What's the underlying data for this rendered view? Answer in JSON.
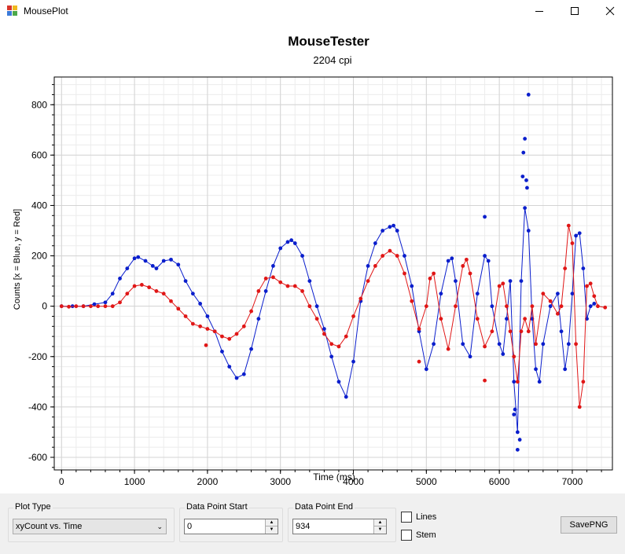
{
  "window": {
    "title": "MousePlot",
    "icon": "chart-app-icon",
    "controls": [
      "minimize-icon",
      "maximize-icon",
      "close-icon"
    ]
  },
  "chart": {
    "title": "MouseTester",
    "subtitle": "2204 cpi",
    "xlabel": "Time (ms)",
    "ylabel": "Counts [x = Blue, y = Red]"
  },
  "chart_data": {
    "type": "line",
    "title": "MouseTester",
    "subtitle": "2204 cpi",
    "xlabel": "Time (ms)",
    "ylabel": "Counts [x = Blue, y = Red]",
    "xlim": [
      -100,
      7550
    ],
    "ylim": [
      -650,
      910
    ],
    "xticks": [
      0,
      1000,
      2000,
      3000,
      4000,
      5000,
      6000,
      7000
    ],
    "yticks": [
      -600,
      -400,
      -200,
      0,
      200,
      400,
      600,
      800
    ],
    "grid": true,
    "legend": "none",
    "series": [
      {
        "color": "#0a1ecc",
        "points": [
          [
            0,
            0
          ],
          [
            150,
            0
          ],
          [
            300,
            0
          ],
          [
            450,
            8
          ],
          [
            600,
            15
          ],
          [
            700,
            50
          ],
          [
            800,
            110
          ],
          [
            900,
            150
          ],
          [
            1000,
            190
          ],
          [
            1050,
            195
          ],
          [
            1150,
            180
          ],
          [
            1250,
            160
          ],
          [
            1300,
            150
          ],
          [
            1400,
            180
          ],
          [
            1500,
            185
          ],
          [
            1600,
            165
          ],
          [
            1700,
            100
          ],
          [
            1800,
            50
          ],
          [
            1900,
            10
          ],
          [
            2000,
            -40
          ],
          [
            2100,
            -100
          ],
          [
            2200,
            -180
          ],
          [
            2300,
            -240
          ],
          [
            2400,
            -285
          ],
          [
            2500,
            -270
          ],
          [
            2600,
            -170
          ],
          [
            2700,
            -50
          ],
          [
            2800,
            60
          ],
          [
            2900,
            160
          ],
          [
            3000,
            230
          ],
          [
            3100,
            255
          ],
          [
            3150,
            262
          ],
          [
            3200,
            250
          ],
          [
            3300,
            200
          ],
          [
            3400,
            100
          ],
          [
            3500,
            0
          ],
          [
            3600,
            -90
          ],
          [
            3700,
            -200
          ],
          [
            3800,
            -300
          ],
          [
            3900,
            -360
          ],
          [
            4000,
            -220
          ],
          [
            4100,
            20
          ],
          [
            4200,
            160
          ],
          [
            4300,
            250
          ],
          [
            4400,
            300
          ],
          [
            4500,
            315
          ],
          [
            4550,
            320
          ],
          [
            4600,
            300
          ],
          [
            4700,
            200
          ],
          [
            4800,
            80
          ],
          [
            4900,
            -100
          ],
          [
            5000,
            -250
          ],
          [
            5100,
            -150
          ],
          [
            5200,
            50
          ],
          [
            5300,
            180
          ],
          [
            5350,
            190
          ],
          [
            5400,
            100
          ],
          [
            5500,
            -150
          ],
          [
            5600,
            -200
          ],
          [
            5700,
            50
          ],
          [
            5800,
            200
          ],
          [
            5850,
            180
          ],
          [
            5900,
            0
          ],
          [
            6000,
            -150
          ],
          [
            6050,
            -190
          ],
          [
            6100,
            -50
          ],
          [
            6150,
            100
          ],
          [
            6200,
            -300
          ],
          [
            6250,
            -500
          ],
          [
            6300,
            100
          ],
          [
            6350,
            390
          ],
          [
            6400,
            300
          ],
          [
            6450,
            -50
          ],
          [
            6500,
            -250
          ],
          [
            6550,
            -300
          ],
          [
            6600,
            -150
          ],
          [
            6700,
            0
          ],
          [
            6800,
            50
          ],
          [
            6850,
            -100
          ],
          [
            6900,
            -250
          ],
          [
            6950,
            -150
          ],
          [
            7000,
            50
          ],
          [
            7050,
            280
          ],
          [
            7100,
            290
          ],
          [
            7150,
            150
          ],
          [
            7200,
            -50
          ],
          [
            7250,
            0
          ],
          [
            7300,
            10
          ]
        ],
        "outliers": [
          [
            6400,
            840
          ],
          [
            6350,
            665
          ],
          [
            6330,
            610
          ],
          [
            6320,
            515
          ],
          [
            6370,
            500
          ],
          [
            6380,
            470
          ],
          [
            6250,
            -570
          ],
          [
            6280,
            -530
          ],
          [
            5800,
            355
          ],
          [
            6200,
            -430
          ],
          [
            6215,
            -410
          ]
        ]
      },
      {
        "color": "#e01616",
        "points": [
          [
            0,
            0
          ],
          [
            100,
            -2
          ],
          [
            200,
            0
          ],
          [
            300,
            0
          ],
          [
            400,
            0
          ],
          [
            500,
            0
          ],
          [
            600,
            0
          ],
          [
            700,
            0
          ],
          [
            800,
            15
          ],
          [
            900,
            50
          ],
          [
            1000,
            80
          ],
          [
            1100,
            85
          ],
          [
            1200,
            75
          ],
          [
            1300,
            60
          ],
          [
            1400,
            50
          ],
          [
            1500,
            20
          ],
          [
            1600,
            -10
          ],
          [
            1700,
            -40
          ],
          [
            1800,
            -70
          ],
          [
            1900,
            -80
          ],
          [
            2000,
            -90
          ],
          [
            2100,
            -100
          ],
          [
            2200,
            -120
          ],
          [
            2300,
            -130
          ],
          [
            2400,
            -110
          ],
          [
            2500,
            -80
          ],
          [
            2600,
            -20
          ],
          [
            2700,
            60
          ],
          [
            2800,
            110
          ],
          [
            2900,
            115
          ],
          [
            3000,
            95
          ],
          [
            3100,
            80
          ],
          [
            3200,
            80
          ],
          [
            3300,
            60
          ],
          [
            3400,
            0
          ],
          [
            3500,
            -50
          ],
          [
            3600,
            -110
          ],
          [
            3700,
            -150
          ],
          [
            3800,
            -160
          ],
          [
            3900,
            -120
          ],
          [
            4000,
            -40
          ],
          [
            4100,
            30
          ],
          [
            4200,
            100
          ],
          [
            4300,
            160
          ],
          [
            4400,
            200
          ],
          [
            4500,
            220
          ],
          [
            4600,
            200
          ],
          [
            4700,
            130
          ],
          [
            4800,
            20
          ],
          [
            4900,
            -90
          ],
          [
            5000,
            0
          ],
          [
            5050,
            110
          ],
          [
            5100,
            130
          ],
          [
            5200,
            -50
          ],
          [
            5300,
            -170
          ],
          [
            5400,
            0
          ],
          [
            5500,
            160
          ],
          [
            5550,
            185
          ],
          [
            5600,
            130
          ],
          [
            5700,
            -50
          ],
          [
            5800,
            -160
          ],
          [
            5900,
            -100
          ],
          [
            6000,
            80
          ],
          [
            6050,
            90
          ],
          [
            6100,
            0
          ],
          [
            6150,
            -100
          ],
          [
            6200,
            -200
          ],
          [
            6250,
            -300
          ],
          [
            6300,
            -100
          ],
          [
            6350,
            -50
          ],
          [
            6400,
            -100
          ],
          [
            6450,
            0
          ],
          [
            6500,
            -150
          ],
          [
            6600,
            50
          ],
          [
            6700,
            20
          ],
          [
            6800,
            -30
          ],
          [
            6850,
            0
          ],
          [
            6900,
            150
          ],
          [
            6950,
            320
          ],
          [
            7000,
            250
          ],
          [
            7050,
            -150
          ],
          [
            7100,
            -400
          ],
          [
            7150,
            -300
          ],
          [
            7200,
            80
          ],
          [
            7250,
            90
          ],
          [
            7300,
            40
          ],
          [
            7350,
            0
          ],
          [
            7450,
            -5
          ]
        ],
        "outliers": [
          [
            1980,
            -155
          ],
          [
            4900,
            -220
          ],
          [
            5800,
            -295
          ]
        ]
      }
    ]
  },
  "controls": {
    "plot_type": {
      "label": "Plot Type",
      "value": "xyCount vs. Time"
    },
    "start": {
      "label": "Data Point Start",
      "value": "0"
    },
    "end": {
      "label": "Data Point End",
      "value": "934"
    },
    "lines": {
      "label": "Lines",
      "checked": false
    },
    "stem": {
      "label": "Stem",
      "checked": false
    },
    "save": {
      "label": "SavePNG"
    }
  }
}
